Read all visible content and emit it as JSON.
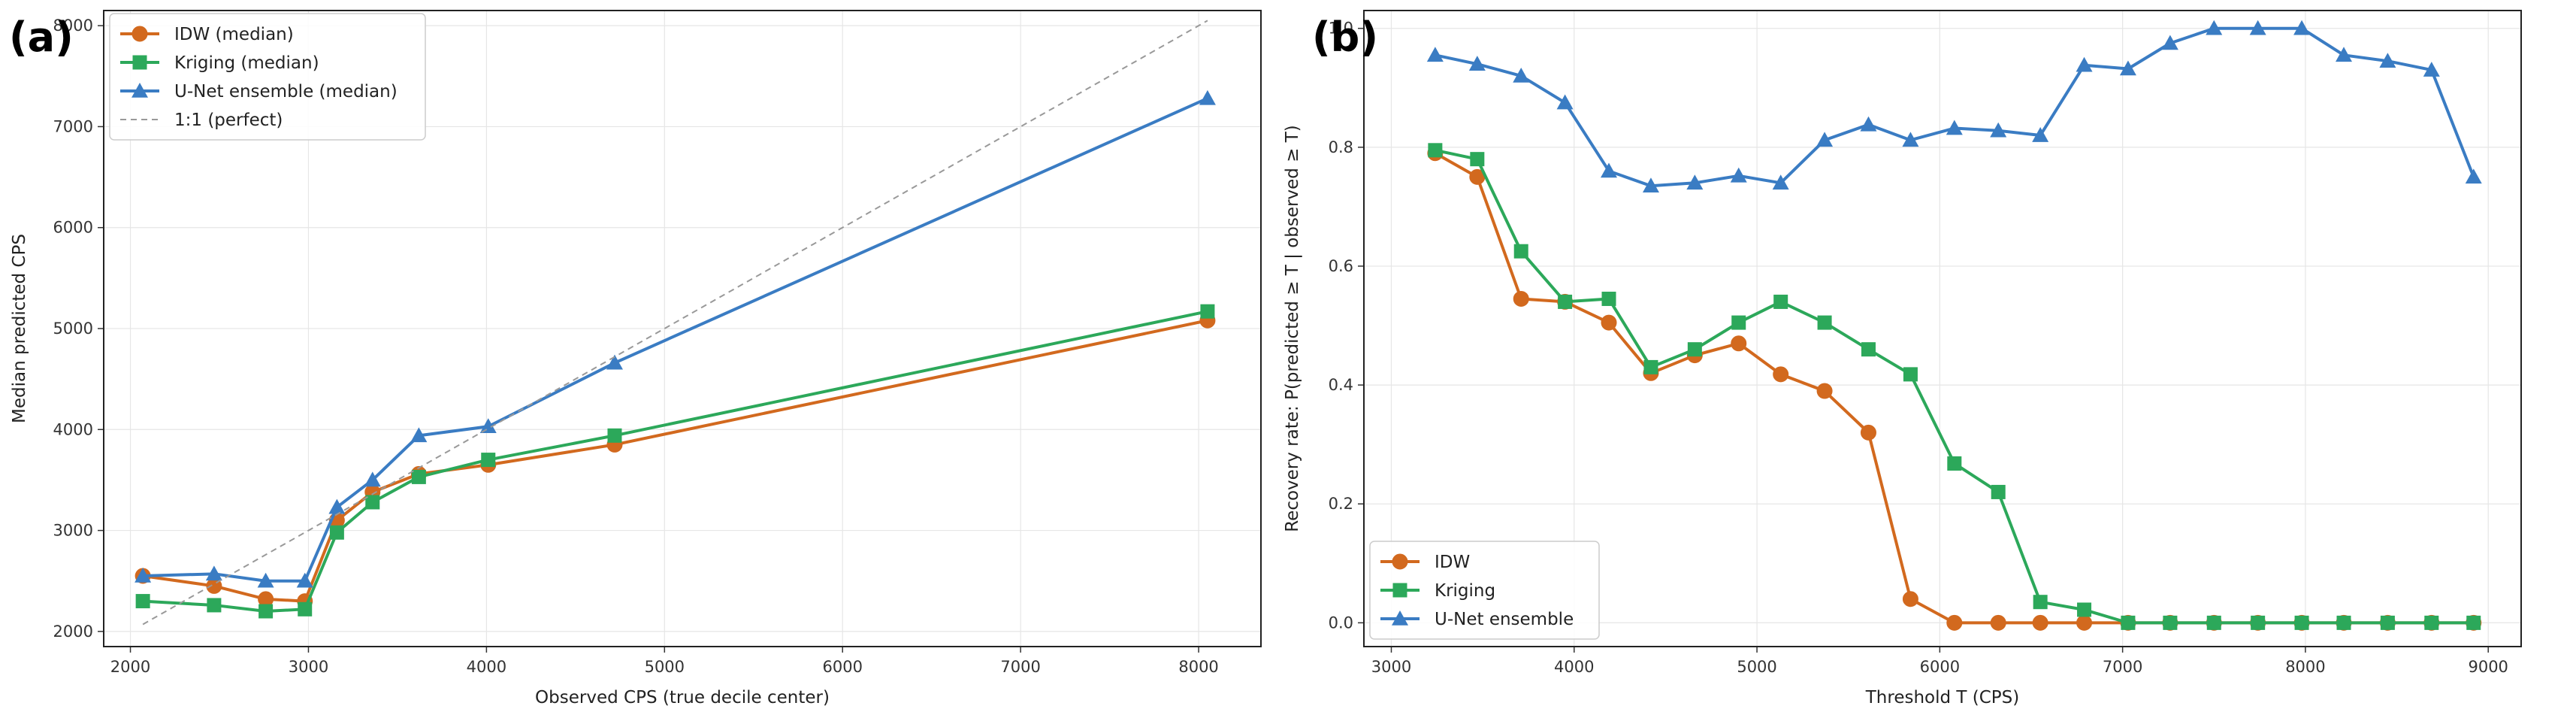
{
  "chart_data": [
    {
      "type": "line",
      "panel_label": "(a)",
      "xlabel": "Observed CPS (true decile center)",
      "ylabel": "Median predicted CPS",
      "xlim": [
        1850,
        8350
      ],
      "ylim": [
        1850,
        8150
      ],
      "xticks": [
        2000,
        3000,
        4000,
        5000,
        6000,
        7000,
        8000
      ],
      "yticks": [
        2000,
        3000,
        4000,
        5000,
        6000,
        7000,
        8000
      ],
      "grid": true,
      "legend_position": "top-left",
      "series": [
        {
          "name": "IDW (median)",
          "color": "#d2691e",
          "marker": "circle",
          "x": [
            2070,
            2470,
            2760,
            2980,
            3160,
            3360,
            3620,
            4010,
            4720,
            8050
          ],
          "y": [
            2550,
            2450,
            2320,
            2300,
            3100,
            3380,
            3560,
            3650,
            3850,
            5080
          ]
        },
        {
          "name": "Kriging (median)",
          "color": "#2ca85a",
          "marker": "square",
          "x": [
            2070,
            2470,
            2760,
            2980,
            3160,
            3360,
            3620,
            4010,
            4720,
            8050
          ],
          "y": [
            2300,
            2260,
            2200,
            2220,
            2980,
            3280,
            3530,
            3700,
            3940,
            5170
          ]
        },
        {
          "name": "U-Net ensemble (median)",
          "color": "#3a7cc3",
          "marker": "triangle",
          "x": [
            2070,
            2470,
            2760,
            2980,
            3160,
            3360,
            3620,
            4010,
            4720,
            8050
          ],
          "y": [
            2550,
            2570,
            2500,
            2500,
            3230,
            3500,
            3940,
            4030,
            4660,
            7280
          ]
        },
        {
          "name": "1:1 (perfect)",
          "color": "#999999",
          "marker": "none",
          "dashed": true,
          "x": [
            2070,
            8050
          ],
          "y": [
            2070,
            8050
          ]
        }
      ]
    },
    {
      "type": "line",
      "panel_label": "(b)",
      "xlabel": "Threshold T (CPS)",
      "ylabel": "Recovery rate: P(predicted ≥ T | observed ≥ T)",
      "xlim": [
        2850,
        9180
      ],
      "ylim": [
        -0.04,
        1.03
      ],
      "xticks": [
        3000,
        4000,
        5000,
        6000,
        7000,
        8000,
        9000
      ],
      "yticks": [
        0.0,
        0.2,
        0.4,
        0.6,
        0.8,
        1.0
      ],
      "ytick_labels": [
        "0.0",
        "0.2",
        "0.4",
        "0.6",
        "0.8",
        "1.0"
      ],
      "grid": true,
      "legend_position": "bottom-left",
      "x": [
        3240,
        3470,
        3710,
        3950,
        4190,
        4420,
        4660,
        4900,
        5130,
        5370,
        5610,
        5840,
        6080,
        6320,
        6550,
        6790,
        7030,
        7260,
        7500,
        7740,
        7980,
        8210,
        8450,
        8690,
        8920
      ],
      "series": [
        {
          "name": "IDW",
          "color": "#d2691e",
          "marker": "circle",
          "values": [
            0.79,
            0.75,
            0.545,
            0.54,
            0.505,
            0.42,
            0.45,
            0.47,
            0.418,
            0.39,
            0.32,
            0.04,
            0.0,
            0.0,
            0.0,
            0.0,
            0.0,
            0.0,
            0.0,
            0.0,
            0.0,
            0.0,
            0.0,
            0.0,
            0.0
          ]
        },
        {
          "name": "Kriging",
          "color": "#2ca85a",
          "marker": "square",
          "values": [
            0.795,
            0.78,
            0.625,
            0.54,
            0.545,
            0.43,
            0.46,
            0.505,
            0.54,
            0.505,
            0.46,
            0.418,
            0.268,
            0.22,
            0.035,
            0.022,
            0.0,
            0.0,
            0.0,
            0.0,
            0.0,
            0.0,
            0.0,
            0.0,
            0.0
          ]
        },
        {
          "name": "U-Net ensemble",
          "color": "#3a7cc3",
          "marker": "triangle",
          "values": [
            0.955,
            0.94,
            0.92,
            0.875,
            0.76,
            0.735,
            0.74,
            0.752,
            0.74,
            0.812,
            0.838,
            0.812,
            0.832,
            0.828,
            0.82,
            0.938,
            0.932,
            0.975,
            1.0,
            1.0,
            1.0,
            0.955,
            0.945,
            0.93,
            0.75
          ]
        }
      ]
    }
  ]
}
